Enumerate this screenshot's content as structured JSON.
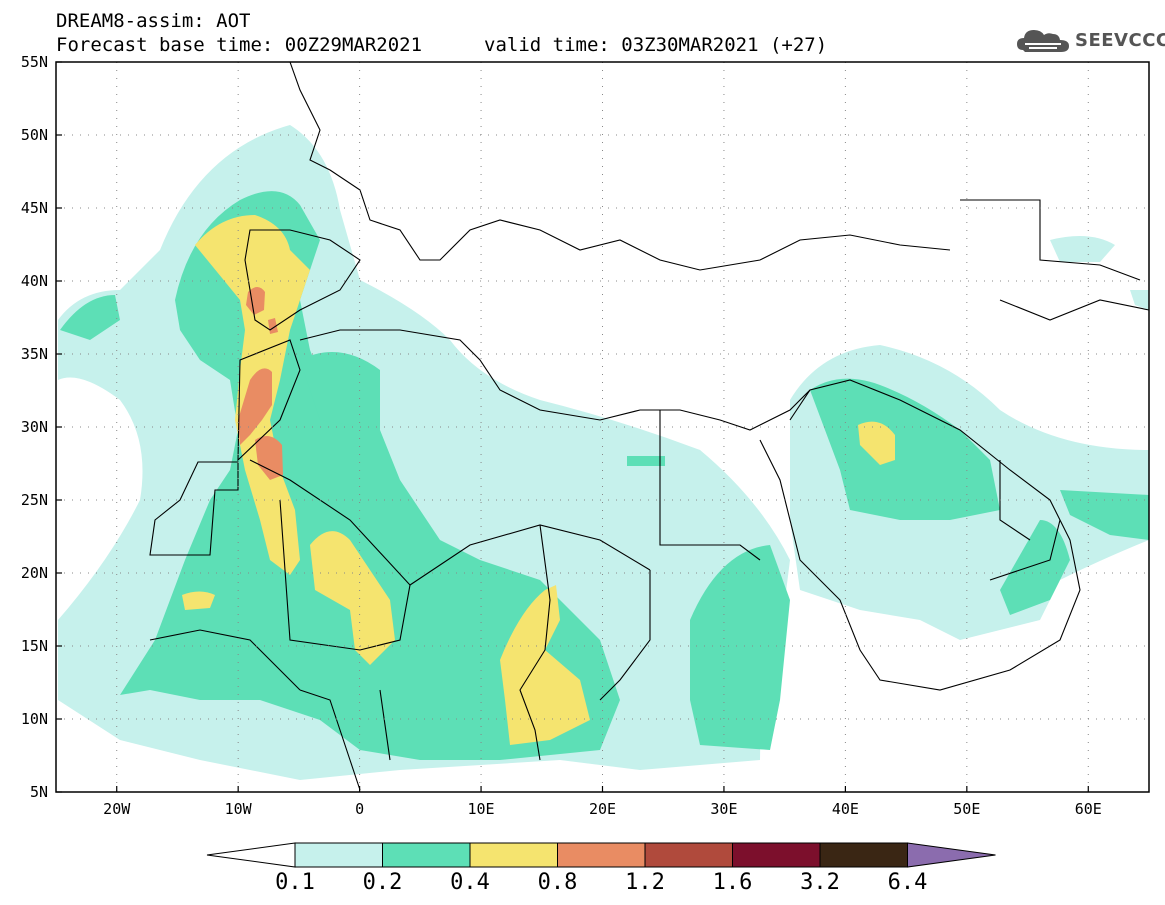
{
  "header": {
    "title": "DREAM8-assim: AOT",
    "base_time": "Forecast base time: 00Z29MAR2021",
    "valid_time": "valid time: 03Z30MAR2021 (+27)"
  },
  "logo": {
    "text": "SEEVCCC",
    "icon": "cloud-icon"
  },
  "map": {
    "variable": "AOT",
    "lon_range": [
      -25,
      65
    ],
    "lat_range": [
      5,
      55
    ],
    "grid": "dotted",
    "lat_labels": [
      "55N",
      "50N",
      "45N",
      "40N",
      "35N",
      "30N",
      "25N",
      "20N",
      "15N",
      "10N",
      "5N"
    ],
    "lon_labels": [
      "20W",
      "10W",
      "0",
      "10E",
      "20E",
      "30E",
      "40E",
      "50E",
      "60E"
    ],
    "background_color": "#ffffff",
    "border_color": "#000000"
  },
  "colorbar": {
    "labels": [
      "0.1",
      "0.2",
      "0.4",
      "0.8",
      "1.2",
      "1.6",
      "3.2",
      "6.4"
    ],
    "colors": [
      "#ffffff",
      "#c6f1ec",
      "#5ddfb6",
      "#f5e46f",
      "#e98c63",
      "#b04a3c",
      "#7c0f2c",
      "#3a2614",
      "#8b6cae"
    ],
    "extend": "both"
  }
}
